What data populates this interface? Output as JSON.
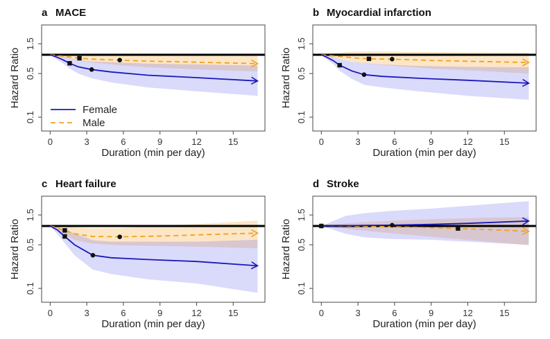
{
  "figure": {
    "colors": {
      "female": "#1a1ab8",
      "male": "#f0a020",
      "female_band": "#6b6bf0",
      "male_band": "#f8c880",
      "reference": "#000000",
      "frame": "#444444"
    },
    "legend": {
      "female_label": "Female",
      "male_label": "Male"
    }
  },
  "chart_data": [
    {
      "type": "line",
      "letter": "a",
      "title": "MACE",
      "xlabel": "Duration (min per day)",
      "ylabel": "Hazard Ratio",
      "xticks": [
        "0",
        "3",
        "6",
        "9",
        "12",
        "15"
      ],
      "yticks": [
        "0.1",
        "0.5",
        "1.5"
      ],
      "xlim": [
        -0.7,
        17.6
      ],
      "ylim": [
        0.06,
        3.0
      ],
      "reference_hr": 1.0,
      "show_legend": true,
      "series": [
        {
          "name": "Female",
          "x": [
            0,
            0.5,
            1,
            1.6,
            2.3,
            3.4,
            5,
            8,
            12,
            17
          ],
          "hr": [
            1.0,
            0.92,
            0.84,
            0.73,
            0.64,
            0.58,
            0.53,
            0.47,
            0.43,
            0.38
          ],
          "lower": [
            1.0,
            0.85,
            0.74,
            0.6,
            0.5,
            0.42,
            0.36,
            0.3,
            0.26,
            0.22
          ],
          "upper": [
            1.0,
            0.98,
            0.95,
            0.88,
            0.82,
            0.78,
            0.76,
            0.72,
            0.7,
            0.67
          ],
          "square_marker": [
            1.6,
            0.73
          ],
          "circle_marker": [
            3.4,
            0.58
          ]
        },
        {
          "name": "Male",
          "x": [
            0,
            0.8,
            1.6,
            2.4,
            3.5,
            5.7,
            8,
            12,
            17
          ],
          "hr": [
            1.0,
            0.96,
            0.92,
            0.88,
            0.85,
            0.82,
            0.79,
            0.76,
            0.72
          ],
          "lower": [
            1.0,
            0.92,
            0.86,
            0.8,
            0.75,
            0.68,
            0.63,
            0.58,
            0.54
          ],
          "upper": [
            1.0,
            1.02,
            1.03,
            1.03,
            1.02,
            1.01,
            1.0,
            0.99,
            0.97
          ],
          "square_marker": [
            2.4,
            0.88
          ],
          "circle_marker": [
            5.7,
            0.82
          ]
        }
      ]
    },
    {
      "type": "line",
      "letter": "b",
      "title": "Myocardial infarction",
      "xlabel": "Duration (min per day)",
      "ylabel": "Hazard Ratio",
      "xticks": [
        "0",
        "3",
        "6",
        "9",
        "12",
        "15"
      ],
      "yticks": [
        "0.1",
        "0.5",
        "1.5"
      ],
      "xlim": [
        -0.7,
        17.6
      ],
      "ylim": [
        0.06,
        3.0
      ],
      "reference_hr": 1.0,
      "show_legend": false,
      "series": [
        {
          "name": "Female",
          "x": [
            0,
            0.5,
            1,
            1.5,
            2.5,
            3.5,
            5,
            8,
            12,
            17
          ],
          "hr": [
            1.0,
            0.9,
            0.8,
            0.68,
            0.55,
            0.48,
            0.45,
            0.42,
            0.39,
            0.35
          ],
          "lower": [
            1.0,
            0.83,
            0.7,
            0.55,
            0.41,
            0.33,
            0.3,
            0.26,
            0.22,
            0.19
          ],
          "upper": [
            1.0,
            0.97,
            0.92,
            0.85,
            0.78,
            0.73,
            0.7,
            0.66,
            0.64,
            0.63
          ],
          "square_marker": [
            1.5,
            0.68
          ],
          "circle_marker": [
            3.5,
            0.48
          ]
        },
        {
          "name": "Male",
          "x": [
            0,
            1,
            2,
            3,
            3.9,
            5.8,
            9,
            13,
            17
          ],
          "hr": [
            1.0,
            0.96,
            0.92,
            0.88,
            0.86,
            0.85,
            0.81,
            0.78,
            0.75
          ],
          "lower": [
            1.0,
            0.9,
            0.82,
            0.75,
            0.71,
            0.67,
            0.6,
            0.55,
            0.5
          ],
          "upper": [
            1.0,
            1.06,
            1.1,
            1.12,
            1.13,
            1.12,
            1.1,
            1.09,
            1.08
          ],
          "square_marker": [
            3.9,
            0.86
          ],
          "circle_marker": [
            5.8,
            0.85
          ]
        }
      ]
    },
    {
      "type": "line",
      "letter": "c",
      "title": "Heart failure",
      "xlabel": "Duration (min per day)",
      "ylabel": "Hazard Ratio",
      "xticks": [
        "0",
        "3",
        "6",
        "9",
        "12",
        "15"
      ],
      "yticks": [
        "0.1",
        "0.5",
        "1.5"
      ],
      "xlim": [
        -0.7,
        17.6
      ],
      "ylim": [
        0.06,
        3.0
      ],
      "reference_hr": 1.0,
      "show_legend": false,
      "series": [
        {
          "name": "Female",
          "x": [
            0,
            0.6,
            1.2,
            2,
            3.5,
            5,
            8,
            12,
            17
          ],
          "hr": [
            1.0,
            0.86,
            0.68,
            0.5,
            0.34,
            0.31,
            0.29,
            0.27,
            0.23
          ],
          "lower": [
            1.0,
            0.74,
            0.53,
            0.34,
            0.2,
            0.17,
            0.14,
            0.12,
            0.085
          ],
          "upper": [
            1.0,
            0.96,
            0.88,
            0.76,
            0.59,
            0.56,
            0.56,
            0.56,
            0.6
          ],
          "square_marker": [
            1.2,
            0.68
          ],
          "circle_marker": [
            3.5,
            0.34
          ]
        },
        {
          "name": "Male",
          "x": [
            0,
            0.6,
            1.2,
            2,
            3.5,
            5.7,
            9,
            13,
            17
          ],
          "hr": [
            1.0,
            0.93,
            0.85,
            0.75,
            0.68,
            0.67,
            0.69,
            0.73,
            0.77
          ],
          "lower": [
            1.0,
            0.86,
            0.73,
            0.6,
            0.52,
            0.49,
            0.48,
            0.46,
            0.44
          ],
          "upper": [
            1.0,
            1.02,
            1.0,
            0.95,
            0.92,
            0.93,
            1.0,
            1.1,
            1.22
          ],
          "square_marker": [
            1.2,
            0.85
          ],
          "circle_marker": [
            5.7,
            0.67
          ]
        }
      ]
    },
    {
      "type": "line",
      "letter": "d",
      "title": "Stroke",
      "xlabel": "Duration (min per day)",
      "ylabel": "Hazard Ratio",
      "xticks": [
        "0",
        "3",
        "6",
        "9",
        "12",
        "15"
      ],
      "yticks": [
        "0.1",
        "0.5",
        "1.5"
      ],
      "xlim": [
        -0.7,
        17.6
      ],
      "ylim": [
        0.06,
        3.0
      ],
      "reference_hr": 1.0,
      "show_legend": false,
      "series": [
        {
          "name": "Female",
          "x": [
            0,
            2,
            3.5,
            5.8,
            9,
            12,
            17
          ],
          "hr": [
            1.0,
            1.01,
            1.02,
            1.03,
            1.06,
            1.1,
            1.2
          ],
          "lower": [
            1.0,
            0.75,
            0.66,
            0.62,
            0.6,
            0.56,
            0.5
          ],
          "upper": [
            1.0,
            1.45,
            1.6,
            1.75,
            1.9,
            2.1,
            2.5
          ],
          "square_marker": [
            0,
            1.0
          ],
          "circle_marker": [
            5.8,
            1.03
          ]
        },
        {
          "name": "Male",
          "x": [
            0,
            2,
            3.5,
            6,
            9,
            11.2,
            14,
            17
          ],
          "hr": [
            1.0,
            1.0,
            0.99,
            0.97,
            0.94,
            0.91,
            0.87,
            0.82
          ],
          "lower": [
            1.0,
            0.9,
            0.84,
            0.76,
            0.67,
            0.62,
            0.55,
            0.49
          ],
          "upper": [
            1.0,
            1.1,
            1.15,
            1.22,
            1.28,
            1.32,
            1.36,
            1.38
          ],
          "square_marker": [
            11.2,
            0.91
          ],
          "circle_marker": [
            0,
            1.0
          ]
        }
      ]
    }
  ]
}
